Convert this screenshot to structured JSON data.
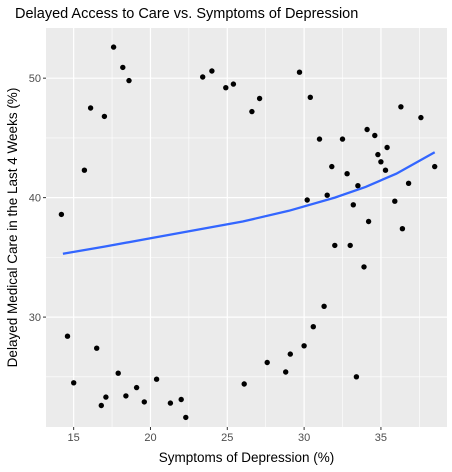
{
  "chart_data": {
    "type": "scatter",
    "title": "Delayed Access to Care vs. Symptoms of Depression",
    "xlabel": "Symptoms of Depression (%)",
    "ylabel": "Delayed Medical Care in the Last 4 Weeks (%)",
    "xlim": [
      13.2,
      39.3
    ],
    "ylim": [
      20.8,
      54.2
    ],
    "x_ticks": [
      15,
      20,
      25,
      30,
      35
    ],
    "y_ticks": [
      30,
      40,
      50
    ],
    "grid": true,
    "panel_background": "#ebebeb",
    "point_color": "#000000",
    "trend_color": "#3366ff",
    "trend_line": {
      "x": [
        14.3,
        17,
        20,
        23,
        26,
        29,
        32,
        34,
        36,
        38.5
      ],
      "y": [
        35.3,
        35.9,
        36.6,
        37.3,
        38.0,
        38.9,
        40.0,
        40.9,
        42.0,
        43.8
      ]
    },
    "points": [
      [
        14.2,
        38.6
      ],
      [
        14.6,
        28.4
      ],
      [
        15.0,
        24.5
      ],
      [
        15.7,
        42.3
      ],
      [
        16.1,
        47.5
      ],
      [
        16.5,
        27.4
      ],
      [
        16.8,
        22.6
      ],
      [
        17.1,
        23.3
      ],
      [
        17.0,
        46.8
      ],
      [
        17.6,
        52.6
      ],
      [
        17.9,
        25.3
      ],
      [
        18.2,
        50.9
      ],
      [
        18.6,
        49.8
      ],
      [
        18.4,
        23.4
      ],
      [
        19.1,
        24.1
      ],
      [
        19.6,
        22.9
      ],
      [
        20.4,
        24.8
      ],
      [
        21.3,
        22.8
      ],
      [
        22.3,
        21.6
      ],
      [
        22.0,
        23.1
      ],
      [
        23.4,
        50.1
      ],
      [
        24.0,
        50.6
      ],
      [
        24.9,
        49.2
      ],
      [
        25.4,
        49.5
      ],
      [
        26.1,
        24.4
      ],
      [
        26.6,
        47.2
      ],
      [
        27.1,
        48.3
      ],
      [
        29.7,
        50.5
      ],
      [
        30.4,
        48.4
      ],
      [
        33.4,
        25.0
      ],
      [
        33.9,
        34.2
      ],
      [
        33.5,
        41.0
      ],
      [
        34.1,
        45.7
      ],
      [
        34.8,
        43.6
      ],
      [
        35.9,
        39.7
      ],
      [
        36.3,
        47.6
      ],
      [
        37.6,
        46.7
      ],
      [
        38.5,
        42.6
      ],
      [
        36.4,
        37.4
      ],
      [
        35.4,
        44.2
      ],
      [
        31.0,
        44.9
      ],
      [
        31.3,
        30.9
      ],
      [
        32.0,
        36.0
      ],
      [
        31.8,
        42.6
      ],
      [
        32.5,
        44.9
      ],
      [
        33.2,
        39.4
      ],
      [
        33.0,
        36.0
      ],
      [
        34.6,
        45.2
      ],
      [
        35.0,
        43.0
      ],
      [
        36.8,
        41.2
      ],
      [
        30.0,
        27.6
      ],
      [
        30.6,
        29.2
      ],
      [
        29.1,
        26.9
      ],
      [
        28.8,
        25.4
      ],
      [
        27.6,
        26.2
      ],
      [
        30.2,
        39.8
      ],
      [
        31.5,
        40.2
      ],
      [
        32.8,
        42.0
      ],
      [
        34.2,
        38.0
      ],
      [
        35.3,
        42.3
      ]
    ]
  }
}
